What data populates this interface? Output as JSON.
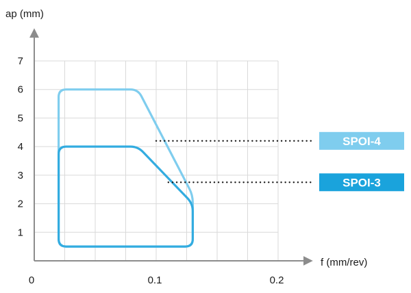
{
  "chart_data": {
    "type": "area",
    "xlabel": "f (mm/rev)",
    "ylabel": "ap (mm)",
    "xlim": [
      0,
      0.2
    ],
    "ylim": [
      0,
      7
    ],
    "xticks": [
      0,
      0.1,
      0.2
    ],
    "xtick_labels": [
      "0",
      "0.1",
      "0.2"
    ],
    "yticks": [
      1,
      2,
      3,
      4,
      5,
      6,
      7
    ],
    "ytick_labels": [
      "1",
      "2",
      "3",
      "4",
      "5",
      "6",
      "7"
    ],
    "grid": true,
    "x_minor_step": 0.025,
    "series": [
      {
        "name": "SPOI-4",
        "color": "#7fcdee",
        "points": [
          [
            0.02,
            0.5
          ],
          [
            0.02,
            6.0
          ],
          [
            0.085,
            6.0
          ],
          [
            0.13,
            2.3
          ],
          [
            0.13,
            0.5
          ]
        ],
        "label_anchor": [
          0.1,
          4.2
        ]
      },
      {
        "name": "SPOI-3",
        "color": "#33ace0",
        "points": [
          [
            0.02,
            0.5
          ],
          [
            0.02,
            4.0
          ],
          [
            0.085,
            4.0
          ],
          [
            0.13,
            2.0
          ],
          [
            0.13,
            0.5
          ]
        ],
        "label_anchor": [
          0.11,
          2.75
        ]
      }
    ]
  },
  "legend_colors": {
    "SPOI-4": "#7fcdee",
    "SPOI-3": "#1aa3dc"
  }
}
